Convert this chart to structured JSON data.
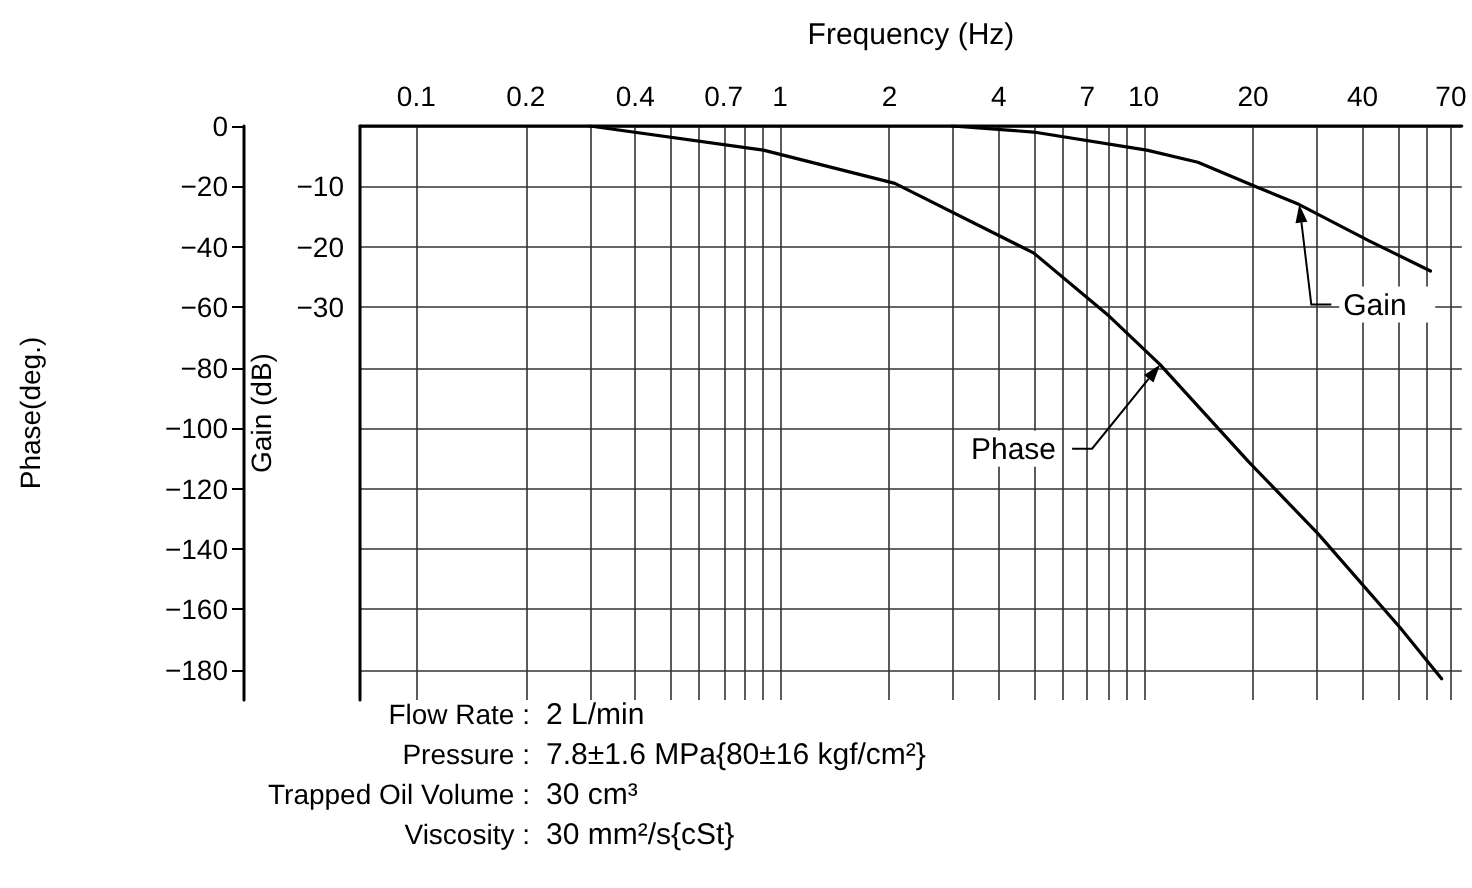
{
  "chart_data": {
    "type": "line",
    "xlabel": "Frequency (Hz)",
    "ylabel": "Phase(deg.)",
    "y2label": "Gain (dB)",
    "log": "x",
    "grid": true,
    "marker": "none",
    "line_style": "solid",
    "xlim": [
      0.07,
      75
    ],
    "xticks": [
      0.1,
      0.2,
      {
        "value": 0.3,
        "label": null
      },
      0.4,
      {
        "value": 0.5,
        "label": null
      },
      {
        "value": 0.6,
        "label": null
      },
      0.7,
      {
        "value": 0.8,
        "label": null
      },
      {
        "value": 0.9,
        "label": null
      },
      1,
      2,
      {
        "value": 3,
        "label": null
      },
      4,
      {
        "value": 5,
        "label": null
      },
      {
        "value": 6,
        "label": null
      },
      7,
      {
        "value": 8,
        "label": null
      },
      {
        "value": 9,
        "label": null
      },
      10,
      20,
      {
        "value": 30,
        "label": null
      },
      40,
      {
        "value": 50,
        "label": null
      },
      {
        "value": 60,
        "label": null
      },
      70
    ],
    "ylim": [
      -190,
      0
    ],
    "yticks": [
      0,
      -20,
      -40,
      -60,
      -80,
      -100,
      -120,
      -140,
      -160,
      -180
    ],
    "y2lim": [
      -95,
      0
    ],
    "y2ticks": [
      -10,
      -20,
      -30
    ],
    "series": [
      {
        "color": "#000000",
        "x": [
          0.3,
          0.9,
          2.07,
          4.98,
          8.05,
          11.1,
          19.4,
          30.2,
          50.7,
          66
        ],
        "values": [
          0,
          -8,
          -19,
          -42,
          -63,
          -79,
          -111,
          -135,
          -166,
          -183
        ]
      },
      {
        "color": "#000000",
        "axis": "y2",
        "x": [
          2.97,
          4.98,
          10.2,
          14.1,
          20.3,
          26.8,
          41.7,
          61.5
        ],
        "values": [
          0,
          -1,
          -4,
          -6,
          -10,
          -13,
          -19,
          -24
        ]
      }
    ],
    "annotations": [
      {
        "text": "Gain",
        "x": 26.8,
        "y": -26
      },
      {
        "text": "Phase",
        "x": 11.1,
        "y": -79
      },
      "Flow Rate : 2 L/min",
      "Pressure : 7.8±1.6 MPa{80±16 kgf/cm²}",
      "Trapped Oil Volume : 30 cm³",
      "Viscosity : 30 mm²/s{cSt}"
    ]
  }
}
